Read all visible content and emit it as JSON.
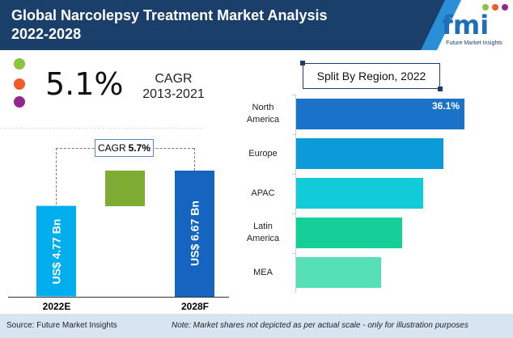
{
  "header": {
    "title_line1": "Global Narcolepsy Treatment Market Analysis",
    "title_line2": "2022-2028",
    "logo_text": "Future Market Insights",
    "logo_letters": "fmi"
  },
  "colors": {
    "header": "#1b3f6b",
    "dots": [
      "#8bc53f",
      "#f15a29",
      "#92278f"
    ]
  },
  "kpi": {
    "value": "5.1%",
    "label": "CAGR",
    "period": "2013-2021"
  },
  "chart_data": [
    {
      "type": "bar",
      "orientation": "vertical",
      "categories": [
        "2022E",
        "2028F"
      ],
      "values": [
        4.77,
        6.67
      ],
      "data_labels": [
        "US$ 4.77 Bn",
        "US$ 6.67 Bn"
      ],
      "annotation": {
        "label": "CAGR",
        "value": "5.7%"
      },
      "colors": [
        "#00aeef",
        "#1565c0",
        "#7cac32"
      ]
    },
    {
      "type": "bar",
      "orientation": "horizontal",
      "title": "Split By Region, 2022",
      "categories": [
        "North America",
        "Europe",
        "APAC",
        "Latin America",
        "MEA"
      ],
      "category_lines": [
        [
          "North",
          "America"
        ],
        [
          "Europe"
        ],
        [
          "APAC"
        ],
        [
          "Latin",
          "America"
        ],
        [
          "MEA"
        ]
      ],
      "values": [
        36.1,
        31.6,
        27.2,
        22.7,
        18.2
      ],
      "data_labels": [
        "36.1%",
        "",
        "",
        "",
        ""
      ],
      "colors": [
        "#1a73c8",
        "#0a9bd8",
        "#12cbd9",
        "#14cf98",
        "#55e0b8"
      ]
    }
  ],
  "footer": {
    "source": "Source: Future Market Insights",
    "note": "Note: Market shares not depicted as per actual scale - only for illustration purposes"
  }
}
